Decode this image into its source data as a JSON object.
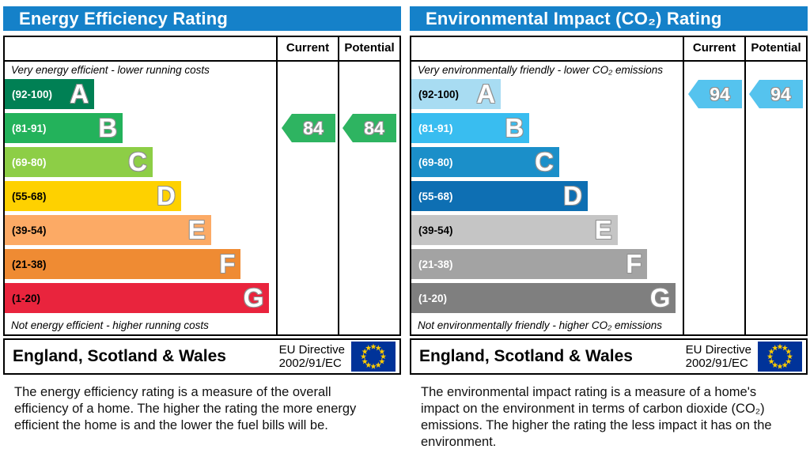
{
  "theme": {
    "header_bg": "#1581c9",
    "table_border": "#000000",
    "eu_flag_bg": "#003399",
    "eu_flag_star": "#ffcc00"
  },
  "chart_data": [
    {
      "type": "bar",
      "title": "Energy Efficiency Rating",
      "categories": [
        "A (92-100)",
        "B (81-91)",
        "C (69-80)",
        "D (55-68)",
        "E (39-54)",
        "F (21-38)",
        "G (1-20)"
      ],
      "series": [
        {
          "name": "Current",
          "values": [
            84
          ],
          "band": "B"
        },
        {
          "name": "Potential",
          "values": [
            84
          ],
          "band": "B"
        }
      ],
      "xlim": [
        1,
        100
      ],
      "legend_position": "none",
      "grid": false
    },
    {
      "type": "bar",
      "title": "Environmental Impact (CO₂) Rating",
      "categories": [
        "A (92-100)",
        "B (81-91)",
        "C (69-80)",
        "D (55-68)",
        "E (39-54)",
        "F (21-38)",
        "G (1-20)"
      ],
      "series": [
        {
          "name": "Current",
          "values": [
            94
          ],
          "band": "A"
        },
        {
          "name": "Potential",
          "values": [
            94
          ],
          "band": "A"
        }
      ],
      "xlim": [
        1,
        100
      ],
      "legend_position": "none",
      "grid": false
    }
  ],
  "panels": [
    {
      "title": "Energy Efficiency Rating",
      "columns": {
        "current": "Current",
        "potential": "Potential"
      },
      "top_caption": "Very energy efficient - lower running costs",
      "bottom_caption": "Not energy efficient - higher running costs",
      "bands": [
        {
          "range": "(92-100)",
          "letter": "A",
          "color": "#008054",
          "range_color": "#ffffff",
          "width_pct": 33
        },
        {
          "range": "(81-91)",
          "letter": "B",
          "color": "#23b25b",
          "range_color": "#ffffff",
          "width_pct": 43.5
        },
        {
          "range": "(69-80)",
          "letter": "C",
          "color": "#8dce46",
          "range_color": "#ffffff",
          "width_pct": 54.5
        },
        {
          "range": "(55-68)",
          "letter": "D",
          "color": "#fed100",
          "range_color": "#000000",
          "width_pct": 65
        },
        {
          "range": "(39-54)",
          "letter": "E",
          "color": "#fcaa65",
          "range_color": "#000000",
          "width_pct": 76
        },
        {
          "range": "(21-38)",
          "letter": "F",
          "color": "#ef8b33",
          "range_color": "#000000",
          "width_pct": 87
        },
        {
          "range": "(1-20)",
          "letter": "G",
          "color": "#e9243d",
          "range_color": "#000000",
          "width_pct": 97.5
        }
      ],
      "current": {
        "value": "84",
        "band_index": 1,
        "color": "#2eb461"
      },
      "potential": {
        "value": "84",
        "band_index": 1,
        "color": "#2eb461"
      },
      "footer": {
        "region": "England, Scotland & Wales",
        "directive_line1": "EU Directive",
        "directive_line2": "2002/91/EC"
      },
      "description": "The energy efficiency rating is a measure of the overall efficiency of a home. The higher the rating the more energy efficient the home is and the lower the fuel bills will be."
    },
    {
      "title": "Environmental Impact (CO₂) Rating",
      "columns": {
        "current": "Current",
        "potential": "Potential"
      },
      "top_caption": "Very environmentally friendly - lower CO₂ emissions",
      "bottom_caption": "Not environmentally friendly - higher CO₂ emissions",
      "bands": [
        {
          "range": "(92-100)",
          "letter": "A",
          "color": "#a8dcf2",
          "range_color": "#000000",
          "width_pct": 33
        },
        {
          "range": "(81-91)",
          "letter": "B",
          "color": "#39bdf0",
          "range_color": "#ffffff",
          "width_pct": 43.5
        },
        {
          "range": "(69-80)",
          "letter": "C",
          "color": "#1b8fc9",
          "range_color": "#ffffff",
          "width_pct": 54.5
        },
        {
          "range": "(55-68)",
          "letter": "D",
          "color": "#0e6fb3",
          "range_color": "#ffffff",
          "width_pct": 65
        },
        {
          "range": "(39-54)",
          "letter": "E",
          "color": "#c5c5c5",
          "range_color": "#000000",
          "width_pct": 76
        },
        {
          "range": "(21-38)",
          "letter": "F",
          "color": "#a3a3a3",
          "range_color": "#ffffff",
          "width_pct": 87
        },
        {
          "range": "(1-20)",
          "letter": "G",
          "color": "#7f7f7f",
          "range_color": "#ffffff",
          "width_pct": 97.5
        }
      ],
      "current": {
        "value": "94",
        "band_index": 0,
        "color": "#55c3ee"
      },
      "potential": {
        "value": "94",
        "band_index": 0,
        "color": "#55c3ee"
      },
      "footer": {
        "region": "England, Scotland & Wales",
        "directive_line1": "EU Directive",
        "directive_line2": "2002/91/EC"
      },
      "description": "The environmental impact rating is a measure of a home's impact on the environment in terms of carbon dioxide (CO₂) emissions. The higher the rating the less impact it has on the environment."
    }
  ]
}
